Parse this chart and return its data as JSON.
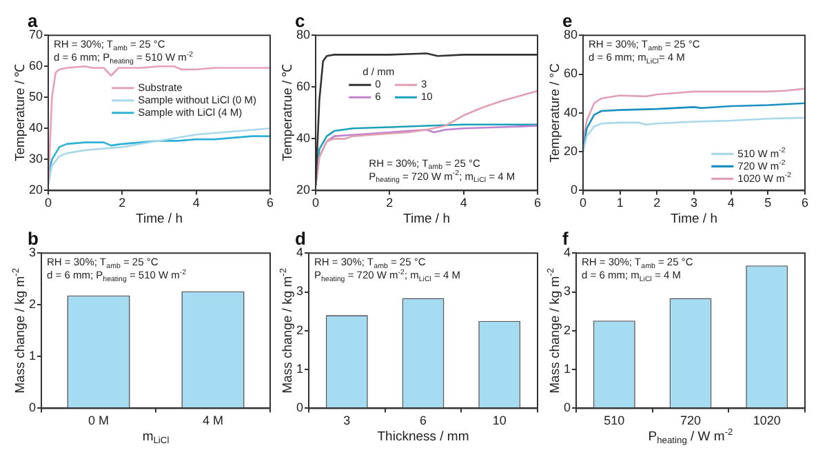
{
  "chart_data": [
    {
      "type": "line",
      "title": "a",
      "xlabel": "Time / h",
      "ylabel": "Temperature / ℃",
      "xlim": [
        0,
        6
      ],
      "xticks": [
        0,
        2,
        4,
        6
      ],
      "ylim": [
        20,
        70
      ],
      "yticks": [
        20,
        30,
        40,
        50,
        60,
        70
      ],
      "grid": false,
      "legend": "right",
      "annotations": [
        "RH = 30%; T$_{amb}$ = 25 °C",
        "d = 6 mm; P$_{heating}$ = 510 W m$^{-2}$"
      ],
      "series": [
        {
          "name": "Substrate",
          "color": "#e8a0b4",
          "x": [
            0,
            0.1,
            0.2,
            0.3,
            0.5,
            1,
            1.2,
            1.5,
            1.7,
            1.9,
            2.5,
            3,
            3.4,
            3.6,
            4,
            4.5,
            5,
            5.5,
            6
          ],
          "values": [
            22,
            50,
            58,
            59,
            59.5,
            60,
            59.5,
            59.5,
            57,
            59.5,
            59.5,
            60,
            60,
            59,
            59,
            59.5,
            59.5,
            59.5,
            59.5
          ]
        },
        {
          "name": "Sample without LiCl (0 M)",
          "color": "#a8d8ea",
          "x": [
            0,
            0.1,
            0.3,
            0.5,
            1,
            1.5,
            2,
            2.5,
            3,
            3.5,
            4,
            4.5,
            5,
            5.5,
            6
          ],
          "values": [
            22,
            28,
            31,
            32,
            33,
            33.5,
            34,
            35,
            36,
            37,
            38,
            38.5,
            39,
            39.5,
            40
          ]
        },
        {
          "name": "Sample with LiCl (4 M)",
          "color": "#2fb0d8",
          "x": [
            0,
            0.1,
            0.3,
            0.5,
            1,
            1.5,
            1.7,
            2,
            2.5,
            3,
            3.5,
            4,
            4.5,
            5,
            5.5,
            6
          ],
          "values": [
            25,
            30,
            34,
            35,
            35.5,
            35.5,
            34.5,
            35,
            35.5,
            36,
            36,
            36.5,
            36.5,
            37,
            37.5,
            37.5
          ]
        }
      ]
    },
    {
      "type": "line",
      "title": "c",
      "xlabel": "Time / h",
      "ylabel": "Temperatrue / ℃",
      "xlim": [
        0,
        6
      ],
      "xticks": [
        0,
        2,
        4,
        6
      ],
      "ylim": [
        20,
        80
      ],
      "yticks": [
        20,
        40,
        60,
        80
      ],
      "grid": false,
      "legend": "top left",
      "legend_title": "d / mm",
      "annotations": [
        "RH = 30%; T$_{amb}$ = 25 °C",
        "P$_{heating}$ = 720 W m$^{-2}$; m$_{LiCl}$ = 4 M"
      ],
      "series": [
        {
          "name": "0",
          "color": "#333333",
          "x": [
            0,
            0.1,
            0.2,
            0.3,
            0.5,
            1,
            2,
            3,
            3.3,
            4,
            5,
            6
          ],
          "values": [
            22,
            55,
            70,
            72,
            72.5,
            72.5,
            72.5,
            73,
            72,
            72.5,
            72.5,
            72.5
          ]
        },
        {
          "name": "3",
          "color": "#e0a0b0",
          "x": [
            0,
            0.1,
            0.3,
            0.5,
            0.8,
            1,
            2,
            2.5,
            3,
            3.5,
            4,
            4.5,
            5,
            5.5,
            6
          ],
          "values": [
            22,
            33,
            39,
            40,
            40,
            41,
            42,
            42.5,
            43.5,
            45,
            49,
            52,
            54.5,
            56.5,
            58.5
          ]
        },
        {
          "name": "6",
          "color": "#c080d0",
          "x": [
            0,
            0.1,
            0.3,
            0.5,
            1,
            2,
            2.5,
            3,
            3.2,
            3.5,
            4,
            5,
            6
          ],
          "values": [
            22,
            33,
            39,
            41,
            41.5,
            42.5,
            43,
            43.5,
            42.5,
            43.5,
            44,
            44.5,
            45
          ]
        },
        {
          "name": "10",
          "color": "#1aa0b8",
          "x": [
            0,
            0.1,
            0.3,
            0.5,
            1,
            2,
            3,
            4,
            5,
            6
          ],
          "values": [
            22,
            36,
            41,
            43,
            44,
            44.5,
            45,
            45.5,
            45.5,
            45.5
          ]
        }
      ]
    },
    {
      "type": "line",
      "title": "e",
      "xlabel": "Time / h",
      "ylabel": "Temperature / °C",
      "xlim": [
        0,
        6
      ],
      "xticks": [
        0,
        1,
        2,
        3,
        4,
        5,
        6
      ],
      "ylim": [
        0,
        80
      ],
      "yticks": [
        0,
        20,
        40,
        60,
        80
      ],
      "grid": false,
      "legend": "bottom right",
      "annotations": [
        "RH = 30%; T$_{amb}$ = 25 °C",
        "d = 6 mm; m$_{LiCl}$= 4 M"
      ],
      "series": [
        {
          "name": "510 W m$^{-2}$",
          "color": "#a8d8ea",
          "x": [
            0,
            0.1,
            0.3,
            0.5,
            1,
            1.5,
            1.7,
            2,
            3,
            4,
            5,
            6
          ],
          "values": [
            20,
            28,
            33,
            34.5,
            35,
            35,
            34,
            34.5,
            35.5,
            36,
            37,
            37.5
          ]
        },
        {
          "name": "720 W m$^{-2}$",
          "color": "#1a90c0",
          "x": [
            0,
            0.1,
            0.3,
            0.5,
            1,
            2,
            3,
            3.2,
            4,
            5,
            6
          ],
          "values": [
            20,
            32,
            39,
            41,
            41.5,
            42,
            43,
            42.5,
            43.5,
            44,
            45
          ]
        },
        {
          "name": "1020 W m$^{-2}$",
          "color": "#e0a0b8",
          "x": [
            0,
            0.1,
            0.3,
            0.5,
            1,
            1.7,
            2,
            3,
            4,
            5,
            5.5,
            6
          ],
          "values": [
            26,
            36,
            45,
            47.5,
            49,
            48.5,
            49.5,
            51,
            51,
            51,
            51.5,
            52.5
          ]
        }
      ]
    },
    {
      "type": "bar",
      "title": "b",
      "xlabel": "m$_{LiCl}$",
      "ylabel": "Mass change / kg m$^{-2}$",
      "ylim": [
        0,
        3
      ],
      "yticks": [
        0,
        1,
        2,
        3
      ],
      "grid": false,
      "annotations": [
        "RH = 30%; T$_{amb}$ = 25 °C",
        "d = 6 mm; P$_{heating}$ = 510 W m$^{-2}$"
      ],
      "categories": [
        "0 M",
        "4 M"
      ],
      "values": [
        2.18,
        2.26
      ],
      "color": "#a6dcf2"
    },
    {
      "type": "bar",
      "title": "d",
      "xlabel": "Thickness / mm",
      "ylabel": "Mass change / kg m$^{-2}$",
      "ylim": [
        0,
        4
      ],
      "yticks": [
        0,
        1,
        2,
        3,
        4
      ],
      "grid": false,
      "annotations": [
        "RH = 30%; T$_{amb}$ = 25 °C",
        "P$_{heating}$ = 720 W m$^{-2}$; m$_{LiCl}$ = 4 M"
      ],
      "categories": [
        "3",
        "6",
        "10"
      ],
      "values": [
        2.4,
        2.84,
        2.25
      ],
      "color": "#a6dcf2"
    },
    {
      "type": "bar",
      "title": "f",
      "xlabel": "P$_{heating}$ / W m$^{-2}$",
      "ylabel": "Mass change / kg m$^{-2}$",
      "ylim": [
        0,
        4
      ],
      "yticks": [
        0,
        1,
        2,
        3,
        4
      ],
      "grid": false,
      "annotations": [
        "RH = 30%; T$_{amb}$ = 25 °C",
        "d = 6 mm; m$_{LiCl}$ = 4 M"
      ],
      "categories": [
        "510",
        "720",
        "1020"
      ],
      "values": [
        2.26,
        2.84,
        3.68
      ],
      "color": "#a6dcf2"
    }
  ]
}
